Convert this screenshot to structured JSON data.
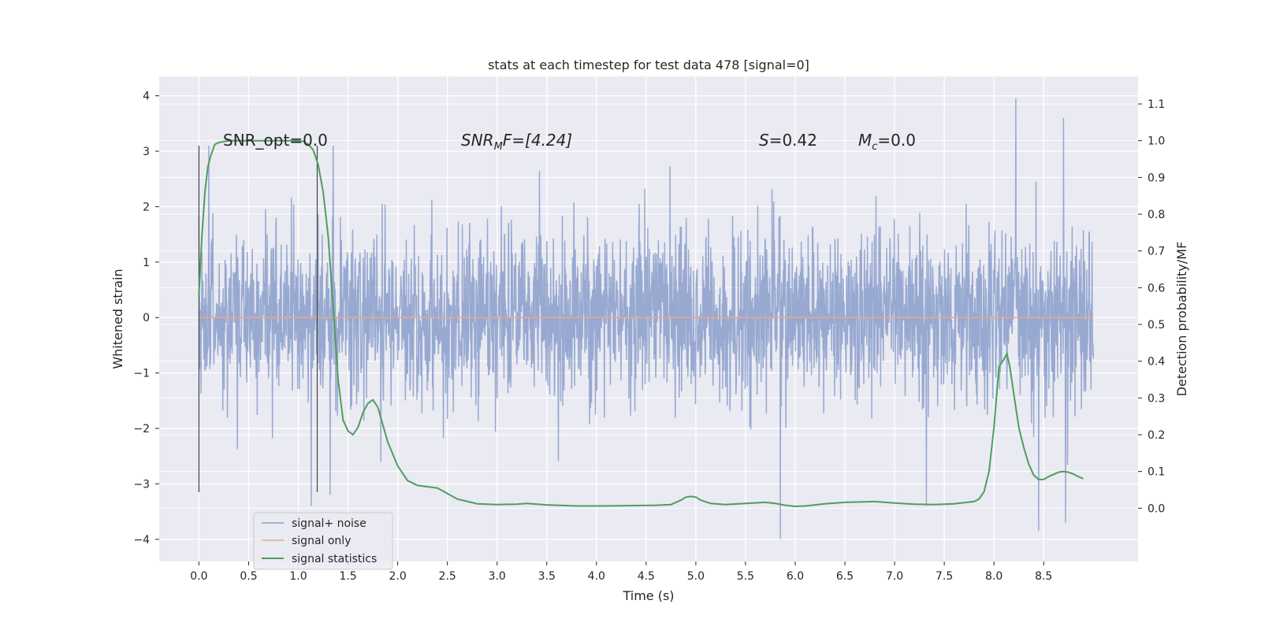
{
  "chart_data": {
    "type": "line",
    "title": "stats at each timestep for test data 478 [signal=0]",
    "xlabel": "Time (s)",
    "ylabel": "Whitened strain",
    "y2label": "Detection probability/MF",
    "xlim": [
      -0.4,
      9.45
    ],
    "ylim": [
      -4.4,
      4.35
    ],
    "y2lim": [
      -0.145,
      1.175
    ],
    "xticks": [
      "0.0",
      "0.5",
      "1.0",
      "1.5",
      "2.0",
      "2.5",
      "3.0",
      "3.5",
      "4.0",
      "4.5",
      "5.0",
      "5.5",
      "6.0",
      "6.5",
      "7.0",
      "7.5",
      "8.0",
      "8.5"
    ],
    "yticks": [
      "4",
      "3",
      "2",
      "1",
      "0",
      "−1",
      "−2",
      "−3",
      "−4"
    ],
    "y2ticks": [
      "1.1",
      "1.0",
      "0.9",
      "0.8",
      "0.7",
      "0.6",
      "0.5",
      "0.4",
      "0.3",
      "0.2",
      "0.1",
      "0.0"
    ],
    "grid": true,
    "legend_position": "lower-left",
    "annotations": {
      "snr_opt": "SNR_opt=0.0",
      "snr_mf_var": "SNR",
      "snr_mf_sub": "M",
      "snr_mf_rest": "F=[4.24]",
      "s_var": "S",
      "s_rest": "=0.42",
      "mc_var": "M",
      "mc_sub": "c",
      "mc_rest": "=0.0"
    },
    "vlines": [
      0.0,
      1.19
    ],
    "series": [
      {
        "name": "signal+ noise",
        "color": "#8a9ecb",
        "t_range": [
          0.0,
          9.0
        ],
        "envelope_hint": {
          "typical_amplitude": 1.25,
          "min": -4.0,
          "max": 3.95
        },
        "peaks": [
          [
            0.1,
            3.1
          ],
          [
            1.13,
            -3.4
          ],
          [
            1.32,
            -3.2
          ],
          [
            1.35,
            3.1
          ],
          [
            5.85,
            -4.0
          ],
          [
            7.32,
            -3.4
          ],
          [
            8.22,
            3.95
          ],
          [
            8.45,
            -3.85
          ],
          [
            8.7,
            3.6
          ],
          [
            8.72,
            -3.7
          ]
        ]
      },
      {
        "name": "signal only",
        "color": "#e8a889",
        "x": [
          0.0,
          9.0
        ],
        "y": [
          0.0,
          0.0
        ]
      },
      {
        "name": "signal statistics",
        "color": "#4e9e5e",
        "axis": "right",
        "x": [
          0.0,
          0.03,
          0.06,
          0.09,
          0.12,
          0.16,
          0.2,
          0.3,
          0.5,
          0.7,
          0.9,
          1.0,
          1.05,
          1.1,
          1.15,
          1.2,
          1.25,
          1.3,
          1.35,
          1.4,
          1.45,
          1.5,
          1.55,
          1.6,
          1.65,
          1.7,
          1.75,
          1.8,
          1.9,
          2.0,
          2.1,
          2.2,
          2.4,
          2.6,
          2.8,
          3.0,
          3.2,
          3.3,
          3.5,
          3.8,
          4.0,
          4.3,
          4.6,
          4.75,
          4.85,
          4.9,
          4.95,
          5.0,
          5.05,
          5.15,
          5.3,
          5.5,
          5.7,
          5.8,
          5.9,
          6.0,
          6.1,
          6.3,
          6.5,
          6.8,
          7.0,
          7.2,
          7.4,
          7.6,
          7.7,
          7.8,
          7.85,
          7.9,
          7.95,
          8.0,
          8.05,
          8.1,
          8.13,
          8.16,
          8.2,
          8.25,
          8.3,
          8.35,
          8.4,
          8.45,
          8.5,
          8.55,
          8.6,
          8.65,
          8.7,
          8.75,
          8.8,
          8.85,
          8.9
        ],
        "y": [
          0.58,
          0.74,
          0.86,
          0.93,
          0.96,
          0.99,
          0.995,
          1.0,
          1.0,
          1.0,
          1.0,
          1.0,
          0.998,
          0.99,
          0.975,
          0.935,
          0.86,
          0.74,
          0.55,
          0.35,
          0.24,
          0.21,
          0.2,
          0.22,
          0.26,
          0.285,
          0.295,
          0.275,
          0.18,
          0.115,
          0.075,
          0.062,
          0.055,
          0.025,
          0.012,
          0.01,
          0.011,
          0.013,
          0.009,
          0.006,
          0.006,
          0.007,
          0.008,
          0.01,
          0.022,
          0.03,
          0.032,
          0.03,
          0.022,
          0.013,
          0.01,
          0.013,
          0.016,
          0.013,
          0.008,
          0.005,
          0.006,
          0.012,
          0.016,
          0.018,
          0.014,
          0.011,
          0.01,
          0.012,
          0.015,
          0.018,
          0.025,
          0.045,
          0.1,
          0.22,
          0.385,
          0.405,
          0.42,
          0.385,
          0.31,
          0.22,
          0.165,
          0.12,
          0.09,
          0.078,
          0.078,
          0.086,
          0.092,
          0.098,
          0.1,
          0.098,
          0.093,
          0.086,
          0.08
        ]
      }
    ]
  }
}
